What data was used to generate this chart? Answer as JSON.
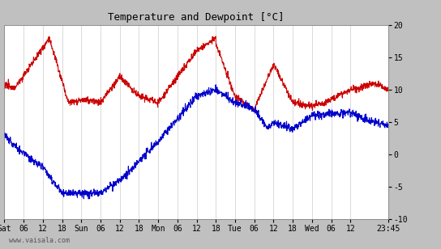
{
  "title": "Temperature and Dewpoint [°C]",
  "ylim": [
    -10,
    20
  ],
  "yticks": [
    -10,
    -5,
    0,
    5,
    10,
    15,
    20
  ],
  "background_color": "#ffffff",
  "outer_background": "#c0c0c0",
  "grid_color": "#cccccc",
  "temp_color": "#cc0000",
  "dewpoint_color": "#0000cc",
  "x_labels": [
    "Sat",
    "06",
    "12",
    "18",
    "Sun",
    "06",
    "12",
    "18",
    "Mon",
    "06",
    "12",
    "18",
    "Tue",
    "06",
    "12",
    "18",
    "Wed",
    "06",
    "12",
    "23:45"
  ],
  "watermark": "www.vaisala.com",
  "line_width": 0.8
}
